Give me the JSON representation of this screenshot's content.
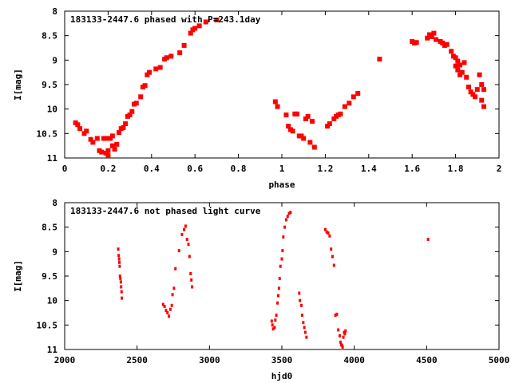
{
  "chart_data": [
    {
      "type": "scatter",
      "title": "183133-2447.6 phased with P=243.1day",
      "xlabel": "phase",
      "ylabel": "I[mag]",
      "xlim": [
        0,
        2
      ],
      "ylim": [
        11,
        8
      ],
      "y_inverted": true,
      "grid": false,
      "marker_color": "#ff0000",
      "x_ticks": [
        0,
        0.2,
        0.4,
        0.6,
        0.8,
        1,
        1.2,
        1.4,
        1.6,
        1.8,
        2
      ],
      "x_tick_labels": [
        "0",
        "0.2",
        "0.4",
        "0.6",
        "0.8",
        "1",
        "1.2",
        "1.4",
        "1.6",
        "1.8",
        "2"
      ],
      "y_ticks": [
        8,
        8.5,
        9,
        9.5,
        10,
        10.5,
        11
      ],
      "y_tick_labels": [
        "8",
        "8.5",
        "9",
        "9.5",
        "10",
        "10.5",
        "11"
      ],
      "series": [
        {
          "x": [
            0.05,
            0.06,
            0.07,
            0.09,
            0.1,
            0.12,
            0.13,
            0.15,
            0.16,
            0.17,
            0.18,
            0.19,
            0.19,
            0.2,
            0.2,
            0.21,
            0.22,
            0.22,
            0.23,
            0.24,
            0.25,
            0.26,
            0.27,
            0.28,
            0.29,
            0.3,
            0.31,
            0.32,
            0.33,
            0.35,
            0.36,
            0.37,
            0.38,
            0.39,
            0.42,
            0.44,
            0.46,
            0.47,
            0.49,
            0.53,
            0.55,
            0.58,
            0.59,
            0.6,
            0.62,
            0.65,
            0.7,
            0.97,
            0.98,
            1.02,
            1.03,
            1.04,
            1.05,
            1.06,
            1.07,
            1.08,
            1.09,
            1.1,
            1.11,
            1.12,
            1.13,
            1.14,
            1.15,
            1.21,
            1.22,
            1.24,
            1.25,
            1.26,
            1.27,
            1.29,
            1.31,
            1.33,
            1.35,
            1.45,
            1.6,
            1.61,
            1.62,
            1.67,
            1.68,
            1.69,
            1.7,
            1.71,
            1.73,
            1.74,
            1.75,
            1.76,
            1.78,
            1.79,
            1.8,
            1.8,
            1.81,
            1.81,
            1.82,
            1.82,
            1.83,
            1.84,
            1.85,
            1.86,
            1.87,
            1.88,
            1.89,
            1.9,
            1.91,
            1.92,
            1.92,
            1.93,
            1.93
          ],
          "y": [
            10.28,
            10.32,
            10.4,
            10.5,
            10.45,
            10.62,
            10.68,
            10.6,
            10.85,
            10.88,
            10.6,
            10.9,
            10.6,
            10.95,
            10.85,
            10.6,
            10.55,
            10.75,
            10.82,
            10.72,
            10.48,
            10.4,
            10.38,
            10.3,
            10.15,
            10.12,
            10.05,
            9.9,
            9.88,
            9.75,
            9.55,
            9.52,
            9.3,
            9.25,
            9.18,
            9.15,
            8.98,
            8.95,
            8.92,
            8.85,
            8.7,
            8.45,
            8.38,
            8.35,
            8.3,
            8.22,
            8.18,
            9.85,
            9.95,
            10.12,
            10.35,
            10.42,
            10.45,
            10.1,
            10.1,
            10.55,
            10.55,
            10.6,
            10.2,
            10.15,
            10.68,
            10.25,
            10.78,
            10.35,
            10.3,
            10.2,
            10.15,
            10.12,
            10.1,
            9.95,
            9.88,
            9.75,
            9.68,
            8.98,
            8.62,
            8.65,
            8.64,
            8.55,
            8.48,
            8.52,
            8.45,
            8.58,
            8.62,
            8.65,
            8.7,
            8.68,
            8.82,
            8.92,
            9.12,
            8.95,
            9.2,
            9.02,
            9.3,
            9.1,
            9.25,
            9.05,
            9.35,
            9.55,
            9.65,
            9.7,
            9.75,
            9.6,
            9.3,
            9.82,
            9.5,
            9.95,
            9.6
          ]
        }
      ]
    },
    {
      "type": "scatter",
      "title": "183133-2447.6 not phased light curve",
      "xlabel": "hjd0",
      "ylabel": "I[mag]",
      "xlim": [
        2000,
        5000
      ],
      "ylim": [
        11,
        8
      ],
      "y_inverted": true,
      "grid": false,
      "marker_color": "#ff0000",
      "x_ticks": [
        2000,
        2500,
        3000,
        3500,
        4000,
        4500,
        5000
      ],
      "x_tick_labels": [
        "2000",
        "2500",
        "3000",
        "3500",
        "4000",
        "4500",
        "5000"
      ],
      "y_ticks": [
        8,
        8.5,
        9,
        9.5,
        10,
        10.5,
        11
      ],
      "y_tick_labels": [
        "8",
        "8.5",
        "9",
        "9.5",
        "10",
        "10.5",
        "11"
      ],
      "series": [
        {
          "x": [
            2370,
            2373,
            2376,
            2378,
            2380,
            2382,
            2385,
            2388,
            2390,
            2393,
            2395,
            2680,
            2690,
            2700,
            2710,
            2720,
            2730,
            2740,
            2745,
            2755,
            2765,
            2790,
            2810,
            2825,
            2835,
            2845,
            2855,
            2862,
            2870,
            2875,
            2880,
            3430,
            3435,
            3440,
            3450,
            3455,
            3462,
            3470,
            3475,
            3480,
            3485,
            3490,
            3500,
            3505,
            3510,
            3520,
            3530,
            3540,
            3550,
            3560,
            3620,
            3625,
            3635,
            3640,
            3648,
            3655,
            3662,
            3670,
            3800,
            3810,
            3820,
            3830,
            3840,
            3850,
            3860,
            3870,
            3880,
            3890,
            3900,
            3905,
            3910,
            3915,
            3920,
            3925,
            3930,
            3935,
            3940,
            4510
          ],
          "y": [
            8.95,
            9.08,
            9.15,
            9.22,
            9.3,
            9.5,
            9.55,
            9.62,
            9.72,
            9.82,
            9.95,
            10.08,
            10.12,
            10.2,
            10.25,
            10.32,
            10.18,
            10.1,
            9.88,
            9.75,
            9.35,
            8.98,
            8.65,
            8.55,
            8.48,
            8.75,
            8.85,
            9.1,
            9.45,
            9.58,
            9.72,
            10.42,
            10.5,
            10.58,
            10.55,
            10.4,
            10.3,
            10.05,
            9.9,
            9.75,
            9.55,
            9.3,
            9.15,
            8.98,
            8.7,
            8.5,
            8.35,
            8.28,
            8.22,
            8.2,
            9.85,
            10.0,
            10.1,
            10.3,
            10.45,
            10.55,
            10.65,
            10.75,
            8.55,
            8.6,
            8.62,
            8.68,
            8.95,
            9.1,
            9.28,
            10.3,
            10.28,
            10.6,
            10.72,
            10.85,
            10.9,
            10.92,
            10.95,
            10.75,
            10.65,
            10.68,
            10.62,
            8.75
          ]
        }
      ]
    }
  ]
}
